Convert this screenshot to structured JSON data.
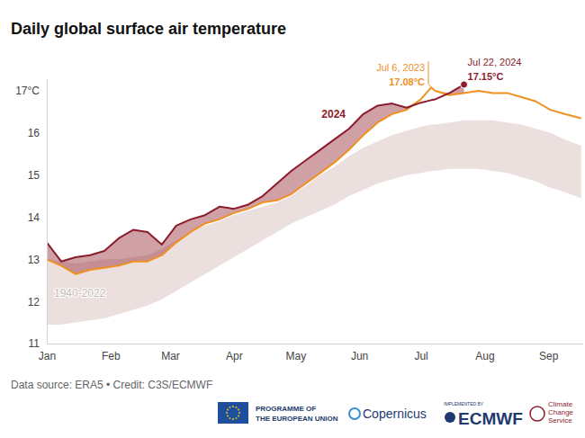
{
  "chart_data": {
    "type": "line",
    "title": "Daily global surface air temperature",
    "source": "Data source: ERA5 • Credit: C3S/ECMWF",
    "x": [
      1,
      8,
      15,
      22,
      29,
      36,
      43,
      50,
      57,
      64,
      71,
      78,
      85,
      92,
      99,
      106,
      113,
      120,
      127,
      134,
      141,
      148,
      155,
      162,
      169,
      176,
      183,
      188,
      190,
      197,
      204,
      211,
      218,
      225,
      232,
      239,
      246,
      253,
      261
    ],
    "xlim": [
      1,
      262
    ],
    "xticks": [
      {
        "value": 1,
        "label": "Jan"
      },
      {
        "value": 32,
        "label": "Feb"
      },
      {
        "value": 61,
        "label": "Mar"
      },
      {
        "value": 92,
        "label": "Apr"
      },
      {
        "value": 122,
        "label": "May"
      },
      {
        "value": 153,
        "label": "Jun"
      },
      {
        "value": 183,
        "label": "Jul"
      },
      {
        "value": 214,
        "label": "Aug"
      },
      {
        "value": 245,
        "label": "Sep"
      }
    ],
    "ylim": [
      11,
      17.3
    ],
    "yticks": [
      11,
      12,
      13,
      14,
      15,
      16,
      {
        "value": 17,
        "label": "17°C"
      }
    ],
    "grid": false,
    "series": [
      {
        "name": "1940-2022",
        "type": "band",
        "color": "#ece0de",
        "low": [
          11.45,
          11.45,
          11.5,
          11.55,
          11.6,
          11.7,
          11.8,
          11.9,
          12.05,
          12.25,
          12.45,
          12.65,
          12.85,
          13.05,
          13.25,
          13.45,
          13.65,
          13.85,
          14.0,
          14.15,
          14.3,
          14.5,
          14.65,
          14.8,
          14.9,
          15.0,
          15.05,
          15.1,
          15.1,
          15.15,
          15.15,
          15.15,
          15.1,
          15.05,
          14.95,
          14.85,
          14.7,
          14.6,
          14.45
        ],
        "high": [
          13.0,
          12.95,
          12.9,
          12.95,
          13.0,
          13.0,
          13.05,
          13.1,
          13.25,
          13.45,
          13.65,
          13.8,
          13.9,
          14.05,
          14.15,
          14.25,
          14.35,
          14.5,
          14.75,
          15.0,
          15.2,
          15.45,
          15.65,
          15.8,
          15.95,
          16.05,
          16.15,
          16.2,
          16.2,
          16.25,
          16.3,
          16.3,
          16.3,
          16.25,
          16.2,
          16.1,
          16.0,
          15.85,
          15.7
        ]
      },
      {
        "type": "line",
        "color": "#f0901e",
        "values": [
          13.0,
          12.85,
          12.65,
          12.75,
          12.8,
          12.85,
          12.95,
          12.95,
          13.1,
          13.4,
          13.65,
          13.85,
          13.95,
          14.1,
          14.2,
          14.35,
          14.4,
          14.55,
          14.8,
          15.05,
          15.3,
          15.6,
          15.95,
          16.25,
          16.45,
          16.55,
          16.8,
          17.08,
          17.0,
          16.9,
          16.95,
          17.0,
          16.95,
          16.95,
          16.85,
          16.75,
          16.55,
          16.45,
          16.35
        ]
      },
      {
        "name": "2024",
        "type": "line",
        "color": "#8c1c2c",
        "values": [
          13.4,
          12.95,
          13.05,
          13.1,
          13.2,
          13.5,
          13.7,
          13.65,
          13.35,
          13.8,
          13.95,
          14.05,
          14.25,
          14.2,
          14.3,
          14.5,
          14.8,
          15.1,
          15.35,
          15.6,
          15.85,
          16.1,
          16.45,
          16.65,
          16.7,
          16.6,
          16.72,
          16.78,
          16.8,
          16.95,
          17.15,
          null,
          null,
          null,
          null,
          null,
          null,
          null,
          null
        ]
      }
    ],
    "annotations": [
      {
        "x": 188,
        "y": 17.08,
        "label": "Jul 6, 2023",
        "value_label": "17.08°C",
        "color": "#f0901e"
      },
      {
        "x": 204,
        "y": 17.15,
        "label": "Jul 22, 2024",
        "value_label": "17.15°C",
        "color": "#8c1c2c",
        "marker": "circle"
      }
    ]
  },
  "footer": {
    "eu": [
      "PROGRAMME OF",
      "THE EUROPEAN UNION"
    ],
    "copernicus": "Copernicus",
    "implemented_by": "IMPLEMENTED BY",
    "ecmwf": "ECMWF",
    "c3s": [
      "Climate",
      "Change",
      "Service"
    ]
  }
}
